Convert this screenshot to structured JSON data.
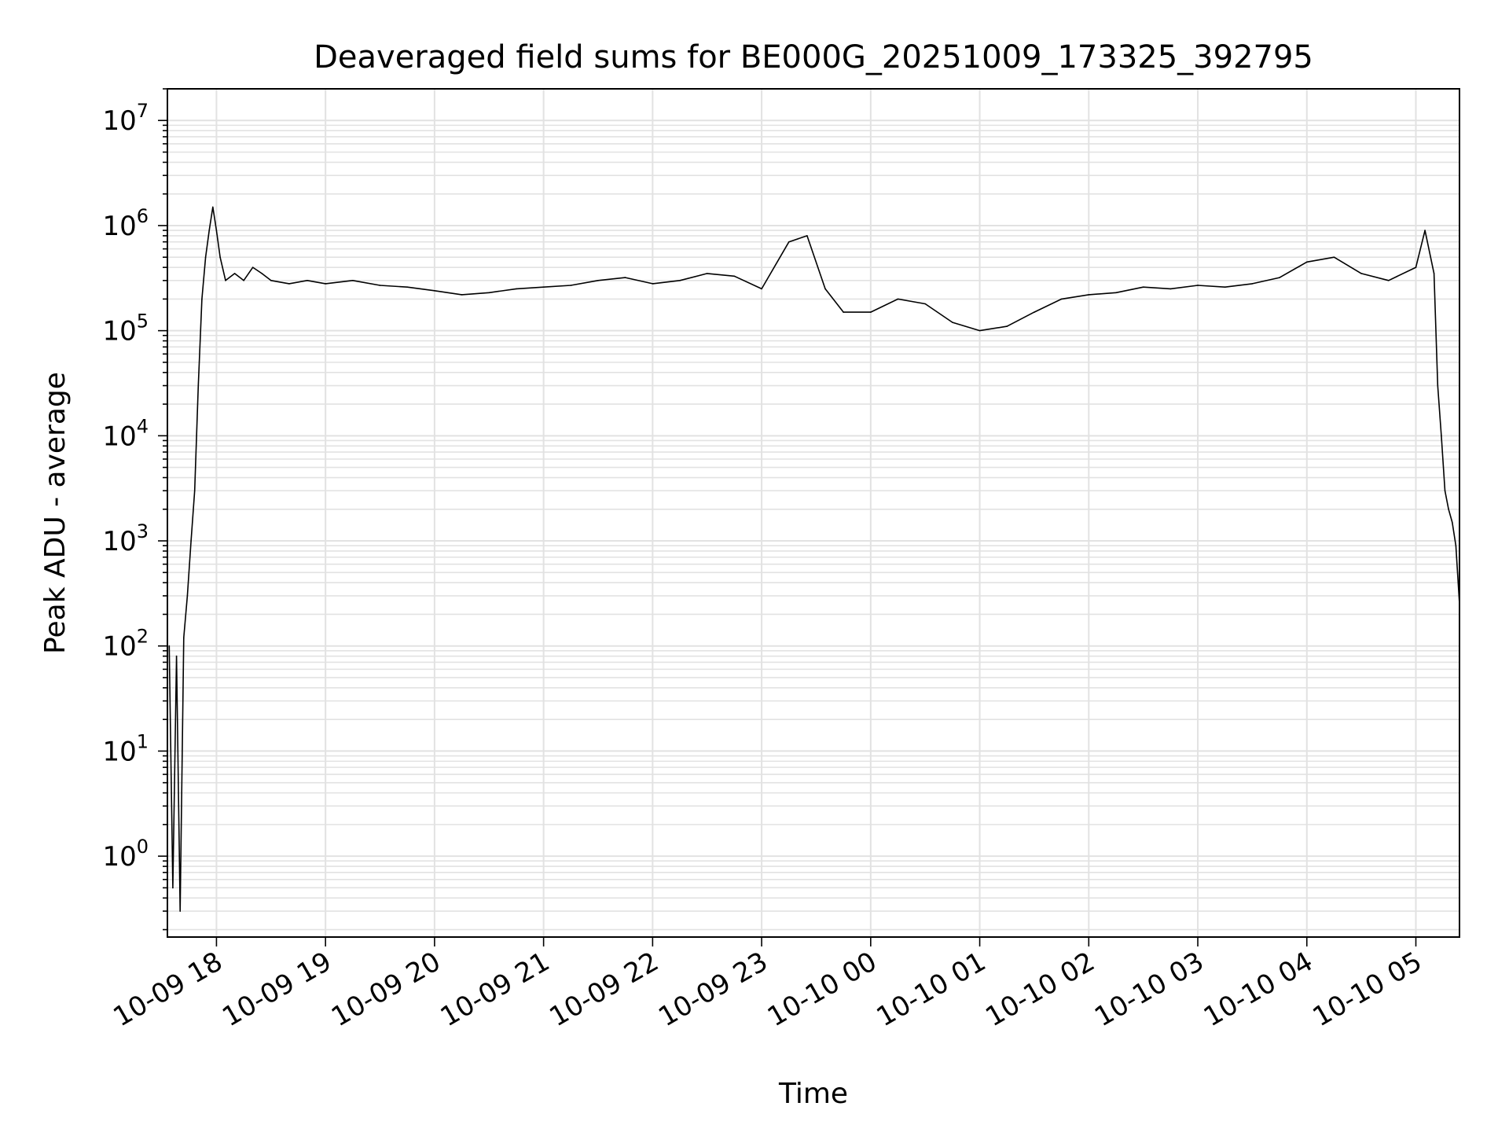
{
  "chart_data": {
    "type": "line",
    "title": "Deaveraged field sums for BE000G_20251009_173325_392795",
    "xlabel": "Time",
    "ylabel": "Peak ADU - average",
    "yscale": "log",
    "ylim": [
      0.17,
      20000000
    ],
    "xlim": [
      "2025-10-09 17:33",
      "2025-10-10 05:24"
    ],
    "grid": true,
    "x_ticks": [
      {
        "value": "2025-10-09 18:00",
        "label": "10-09 18"
      },
      {
        "value": "2025-10-09 19:00",
        "label": "10-09 19"
      },
      {
        "value": "2025-10-09 20:00",
        "label": "10-09 20"
      },
      {
        "value": "2025-10-09 21:00",
        "label": "10-09 21"
      },
      {
        "value": "2025-10-09 22:00",
        "label": "10-09 22"
      },
      {
        "value": "2025-10-09 23:00",
        "label": "10-09 23"
      },
      {
        "value": "2025-10-10 00:00",
        "label": "10-10 00"
      },
      {
        "value": "2025-10-10 01:00",
        "label": "10-10 01"
      },
      {
        "value": "2025-10-10 02:00",
        "label": "10-10 02"
      },
      {
        "value": "2025-10-10 03:00",
        "label": "10-10 03"
      },
      {
        "value": "2025-10-10 04:00",
        "label": "10-10 04"
      },
      {
        "value": "2025-10-10 05:00",
        "label": "10-10 05"
      }
    ],
    "y_ticks": [
      {
        "value": 1,
        "base": "10",
        "exp": "0"
      },
      {
        "value": 10,
        "base": "10",
        "exp": "1"
      },
      {
        "value": 100,
        "base": "10",
        "exp": "2"
      },
      {
        "value": 1000,
        "base": "10",
        "exp": "3"
      },
      {
        "value": 10000,
        "base": "10",
        "exp": "4"
      },
      {
        "value": 100000,
        "base": "10",
        "exp": "5"
      },
      {
        "value": 1000000,
        "base": "10",
        "exp": "6"
      },
      {
        "value": 10000000,
        "base": "10",
        "exp": "7"
      }
    ],
    "series": [
      {
        "color": "#000000",
        "x": [
          "2025-10-09 17:34",
          "2025-10-09 17:36",
          "2025-10-09 17:38",
          "2025-10-09 17:40",
          "2025-10-09 17:42",
          "2025-10-09 17:44",
          "2025-10-09 17:46",
          "2025-10-09 17:48",
          "2025-10-09 17:50",
          "2025-10-09 17:52",
          "2025-10-09 17:54",
          "2025-10-09 17:56",
          "2025-10-09 17:58",
          "2025-10-09 18:00",
          "2025-10-09 18:02",
          "2025-10-09 18:05",
          "2025-10-09 18:10",
          "2025-10-09 18:15",
          "2025-10-09 18:20",
          "2025-10-09 18:25",
          "2025-10-09 18:30",
          "2025-10-09 18:40",
          "2025-10-09 18:50",
          "2025-10-09 19:00",
          "2025-10-09 19:15",
          "2025-10-09 19:30",
          "2025-10-09 19:45",
          "2025-10-09 20:00",
          "2025-10-09 20:15",
          "2025-10-09 20:30",
          "2025-10-09 20:45",
          "2025-10-09 21:00",
          "2025-10-09 21:15",
          "2025-10-09 21:30",
          "2025-10-09 21:45",
          "2025-10-09 22:00",
          "2025-10-09 22:15",
          "2025-10-09 22:30",
          "2025-10-09 22:45",
          "2025-10-09 23:00",
          "2025-10-09 23:15",
          "2025-10-09 23:25",
          "2025-10-09 23:35",
          "2025-10-09 23:45",
          "2025-10-10 00:00",
          "2025-10-10 00:15",
          "2025-10-10 00:30",
          "2025-10-10 00:45",
          "2025-10-10 01:00",
          "2025-10-10 01:15",
          "2025-10-10 01:30",
          "2025-10-10 01:45",
          "2025-10-10 02:00",
          "2025-10-10 02:15",
          "2025-10-10 02:30",
          "2025-10-10 02:45",
          "2025-10-10 03:00",
          "2025-10-10 03:15",
          "2025-10-10 03:30",
          "2025-10-10 03:45",
          "2025-10-10 04:00",
          "2025-10-10 04:15",
          "2025-10-10 04:30",
          "2025-10-10 04:45",
          "2025-10-10 05:00",
          "2025-10-10 05:05",
          "2025-10-10 05:10",
          "2025-10-10 05:12",
          "2025-10-10 05:14",
          "2025-10-10 05:16",
          "2025-10-10 05:18",
          "2025-10-10 05:20",
          "2025-10-10 05:22",
          "2025-10-10 05:24"
        ],
        "values": [
          100,
          0.5,
          80,
          0.3,
          120,
          300,
          1000,
          3000,
          30000,
          200000,
          500000,
          900000,
          1500000,
          900000,
          500000,
          300000,
          350000,
          300000,
          400000,
          350000,
          300000,
          280000,
          300000,
          280000,
          300000,
          270000,
          260000,
          240000,
          220000,
          230000,
          250000,
          260000,
          270000,
          300000,
          320000,
          280000,
          300000,
          350000,
          330000,
          250000,
          700000,
          800000,
          250000,
          150000,
          150000,
          200000,
          180000,
          120000,
          100000,
          110000,
          150000,
          200000,
          220000,
          230000,
          260000,
          250000,
          270000,
          260000,
          280000,
          320000,
          450000,
          500000,
          350000,
          300000,
          400000,
          900000,
          350000,
          30000,
          10000,
          3000,
          2000,
          1500,
          900,
          250
        ]
      }
    ]
  }
}
